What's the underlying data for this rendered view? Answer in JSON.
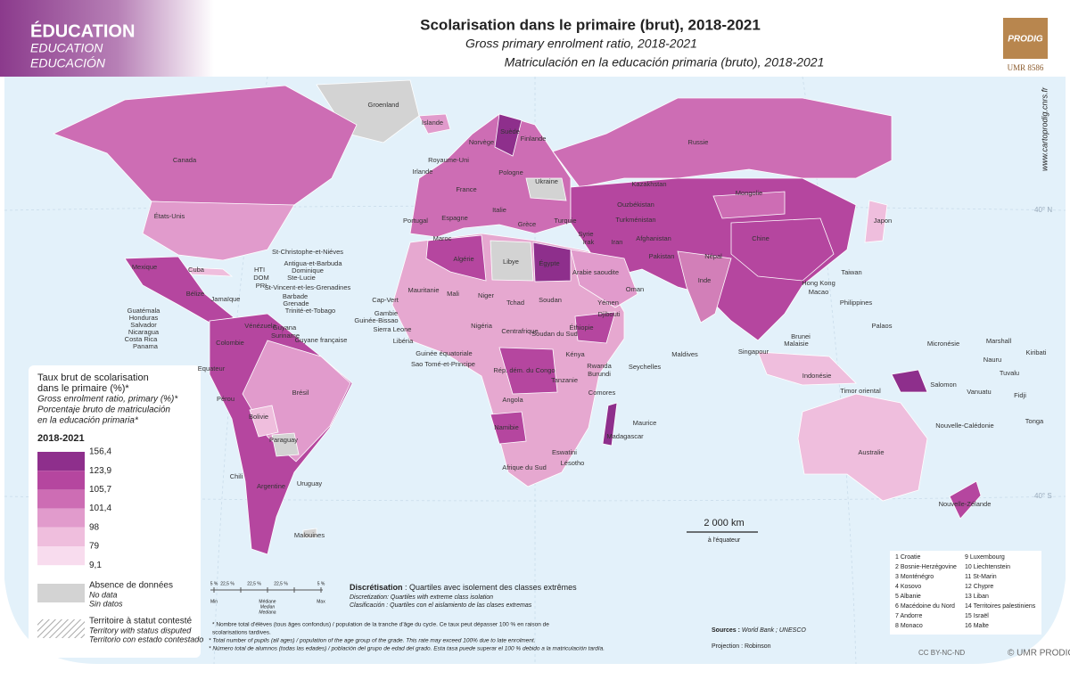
{
  "header": {
    "theme": [
      "ÉDUCATION",
      "EDUCATION",
      "EDUCACIÓN"
    ],
    "title": "Scolarisation dans le primaire (brut), 2018-2021",
    "subtitle_en": "Gross primary enrolment ratio, 2018-2021",
    "subtitle_es": "Matriculación en la educación primaria (bruto), 2018-2021",
    "logo": "PRODIG",
    "logo_sub": "UMR 8586",
    "url": "www.cartoprodig.cnrs.fr"
  },
  "legend": {
    "title": [
      "Taux brut de scolarisation",
      "dans le primaire (%)*",
      "Gross enrolment ratio, primary (%)*",
      "Porcentaje bruto de matriculación",
      "en la educación primaria*"
    ],
    "period": "2018-2021",
    "breaks": [
      {
        "value": 156.4,
        "label": "156,4"
      },
      {
        "value": 123.9,
        "label": "123,9"
      },
      {
        "value": 105.7,
        "label": "105,7"
      },
      {
        "value": 101.4,
        "label": "101,4"
      },
      98,
      79,
      {
        "value": 9.1,
        "label": "9,1"
      }
    ],
    "colors": [
      "#8e2f8c",
      "#b5469f",
      "#cd6db4",
      "#e19bcc",
      "#efbedd",
      "#f8dcee"
    ],
    "no_data": [
      "Absence de données",
      "No data",
      "Sin datos"
    ],
    "disputed": [
      "Territoire à statut contesté",
      "Territory with status disputed",
      "Territorio con estado contestado"
    ]
  },
  "map": {
    "labels": [
      "Groenland",
      "Islande",
      "Canada",
      "États-Unis",
      "Norvège",
      "Suède",
      "Finlande",
      "Russie",
      "Royaume-Uni",
      "Irlande",
      "Pologne",
      "Ukraine",
      "France",
      "Espagne",
      "Portugal",
      "Italie",
      "Kazakhstan",
      "Mongolie",
      "Ouzbékistan",
      "Turkménistan",
      "Afghanistan",
      "Japon",
      "Chine",
      "Turquie",
      "Grèce",
      "Syrie",
      "Irak",
      "Iran",
      "Pakistan",
      "Népal",
      "Inde",
      "Maroc",
      "Algérie",
      "Libye",
      "Égypte",
      "Arabie saoudite",
      "Oman",
      "Yémen",
      "Djibouti",
      "Mauritanie",
      "Mali",
      "Niger",
      "Tchad",
      "Soudan",
      "Cap-Vert",
      "Gambie",
      "Guinée-Bissao",
      "Sierra Leone",
      "Libéria",
      "Nigéria",
      "Centrafrique",
      "Soudan du Sud",
      "Éthiopie",
      "Guinée équatoriale",
      "Sao Tomé-et-Principe",
      "Rép. dém. du Congo",
      "Kénya",
      "Rwanda",
      "Burundi",
      "Tanzanie",
      "Seychelles",
      "Comores",
      "Angola",
      "Maurice",
      "Namibie",
      "Madagascar",
      "Eswatini",
      "Afrique du Sud",
      "Lésotho",
      "Taiwan",
      "Hong Kong",
      "Macao",
      "Philippines",
      "Palaos",
      "Brunei",
      "Malaisie",
      "Singapour",
      "Maldives",
      "Indonésie",
      "Timor oriental",
      "Micronésie",
      "Marshall",
      "Kiribati",
      "Nauru",
      "Tuvalu",
      "Salomon",
      "Vanuatu",
      "Fidji",
      "Tonga",
      "Nouvelle-Calédonie",
      "Australie",
      "Nouvelle-Zélande",
      "Mexique",
      "Cuba",
      "HTI",
      "DOM",
      "PRI",
      "Jamaïque",
      "Bélize",
      "Guatémala",
      "Honduras",
      "Salvador",
      "Nicaragua",
      "Costa Rica",
      "Panama",
      "St-Christophe-et-Niéves",
      "Antigua-et-Barbuda",
      "Dominique",
      "Ste-Lucie",
      "St-Vincent-et-les-Grenadines",
      "Barbade",
      "Grenade",
      "Trinité-et-Tobago",
      "Vénézuela",
      "Guyana",
      "Suriname",
      "Guyane française",
      "Colombie",
      "Equateur",
      "Pérou",
      "Brésil",
      "Bolivie",
      "Paraguay",
      "Chili",
      "Argentine",
      "Uruguay",
      "Malouines"
    ],
    "graticule": [
      "40° N",
      "40° S"
    ],
    "scale": {
      "label": "2 000 km",
      "note": "à l'équateur"
    }
  },
  "distortion": {
    "ticks": [
      "5 %",
      "22,5 %",
      "22,5 %",
      "22,5 %",
      "5 %"
    ],
    "min": "Min",
    "median": [
      "Médiane",
      "Median",
      "Mediana"
    ],
    "max": "Max"
  },
  "discretisation": {
    "label": "Discrétisation",
    "text": " : Quartiles avec isolement des classes extrêmes",
    "en": "Discretization: Quartiles with extreme class isolation",
    "es": "Clasificación : Quartiles con el aislamiento de las clases extremas"
  },
  "footnotes": [
    "* Nombre total d'élèves (tous âges confondus) / population de la tranche d'âge du cycle. Ce taux peut dépasser 100 % en raison de",
    "scolarisations tardives.",
    "* Total number of pupils (all ages) / population of the age group of the grade. This rate may exceed 100% due to late enrolment.",
    "* Número total de alumnos (todas las edades) / población del grupo de edad del grado. Esta tasa puede superar el 100 % debido a la matriculación tardía."
  ],
  "sources": {
    "label": "Sources :",
    "text": "World Bank ; UNESCO"
  },
  "projection": "Projection : Robinson",
  "numbered": [
    "1 Croatie",
    "2 Bosnie-Herzégovine",
    "3 Monténégro",
    "4 Kosovo",
    "5 Albanie",
    "6 Macédoine du Nord",
    "7 Andorre",
    "8 Monaco",
    "9 Luxembourg",
    "10 Liechtenstein",
    "11 St-Marin",
    "12 Chypre",
    "13 Liban",
    "14 Territoires palestiniens",
    "15 Israël",
    "16 Malte"
  ],
  "license": "CC BY-NC-ND",
  "copyright": "© UMR PRODIG"
}
